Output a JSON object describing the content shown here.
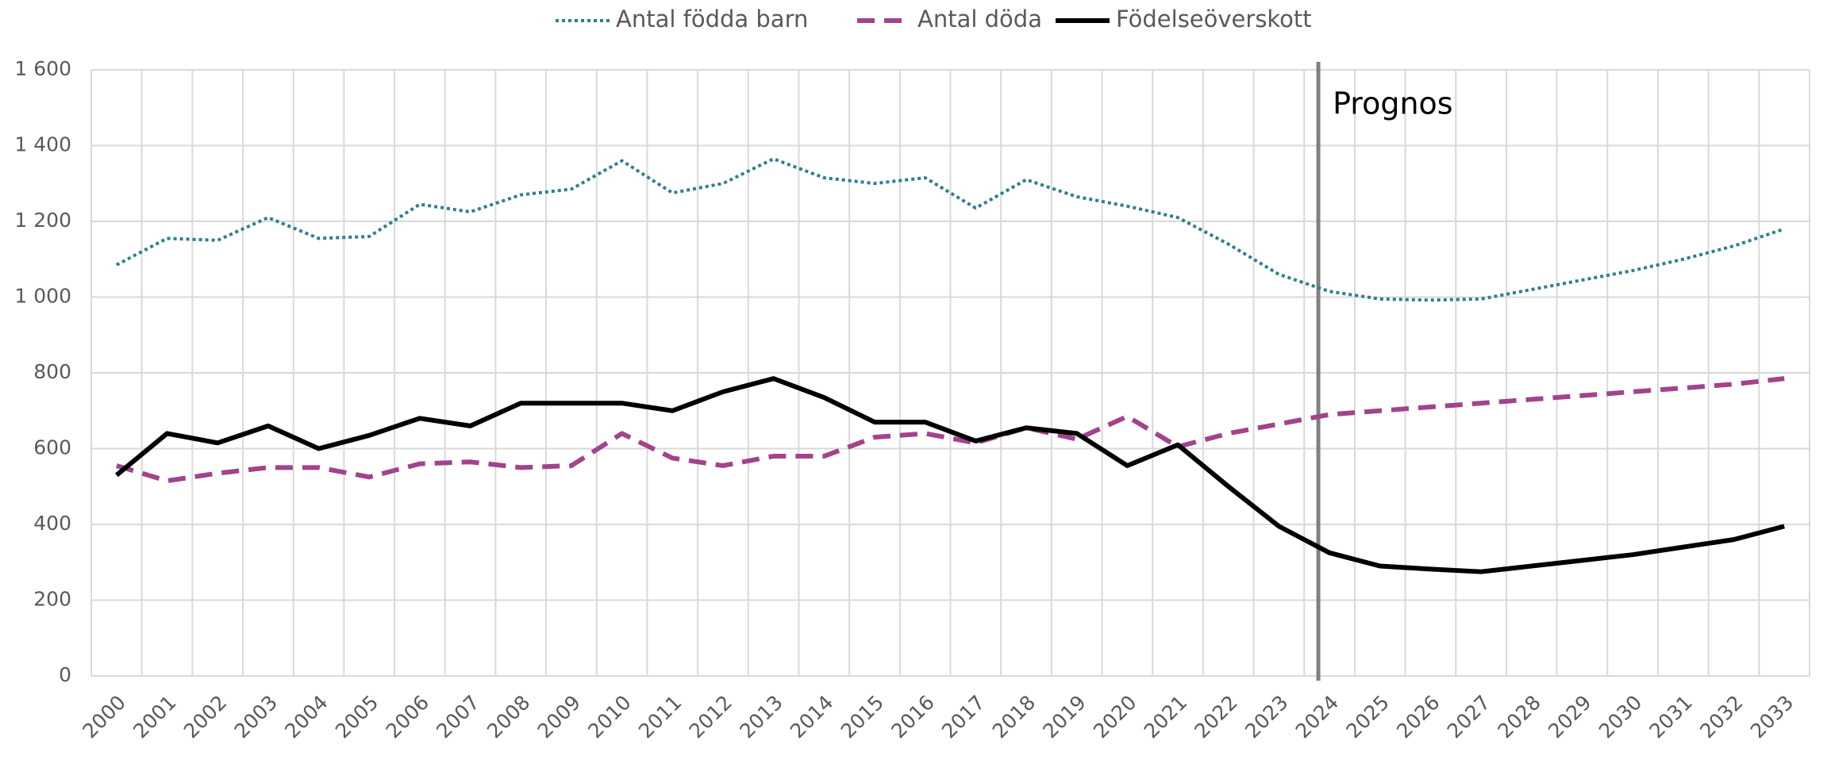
{
  "chart_data": {
    "type": "line",
    "categories": [
      "2000",
      "2001",
      "2002",
      "2003",
      "2004",
      "2005",
      "2006",
      "2007",
      "2008",
      "2009",
      "2010",
      "2011",
      "2012",
      "2013",
      "2014",
      "2015",
      "2016",
      "2017",
      "2018",
      "2019",
      "2020",
      "2021",
      "2022",
      "2023",
      "2024",
      "2025",
      "2026",
      "2027",
      "2028",
      "2029",
      "2030",
      "2031",
      "2032",
      "2033"
    ],
    "series": [
      {
        "name": "Antal födda barn",
        "color": "#2e7f8c",
        "dash": "dotted",
        "values": [
          1085,
          1155,
          1150,
          1210,
          1155,
          1160,
          1245,
          1225,
          1270,
          1285,
          1360,
          1275,
          1300,
          1365,
          1315,
          1300,
          1315,
          1235,
          1310,
          1265,
          1240,
          1210,
          1140,
          1060,
          1015,
          995,
          992,
          995,
          1020,
          1045,
          1070,
          1100,
          1135,
          1180
        ]
      },
      {
        "name": "Antal döda",
        "color": "#a2438c",
        "dash": "dashed",
        "values": [
          555,
          515,
          535,
          550,
          550,
          525,
          560,
          565,
          550,
          555,
          640,
          575,
          555,
          580,
          580,
          630,
          640,
          615,
          655,
          625,
          685,
          605,
          640,
          665,
          690,
          700,
          710,
          720,
          730,
          740,
          750,
          760,
          770,
          785
        ]
      },
      {
        "name": "Födelseöverskott",
        "color": "#000000",
        "dash": "solid",
        "values": [
          530,
          640,
          615,
          660,
          600,
          635,
          680,
          660,
          720,
          720,
          720,
          700,
          750,
          785,
          735,
          670,
          670,
          620,
          655,
          640,
          555,
          610,
          500,
          395,
          325,
          290,
          282,
          275,
          290,
          305,
          320,
          340,
          360,
          395
        ]
      }
    ],
    "ylim": [
      0,
      1600
    ],
    "yticks": [
      0,
      200,
      400,
      600,
      800,
      {
        "value": 1000,
        "label": "1 000"
      },
      {
        "value": 1200,
        "label": "1 200"
      },
      {
        "value": 1400,
        "label": "1 400"
      },
      {
        "value": 1600,
        "label": "1 600"
      }
    ],
    "grid": true,
    "legend": "top",
    "annotations": [
      {
        "text": "Prognos",
        "category": "2024"
      }
    ]
  }
}
